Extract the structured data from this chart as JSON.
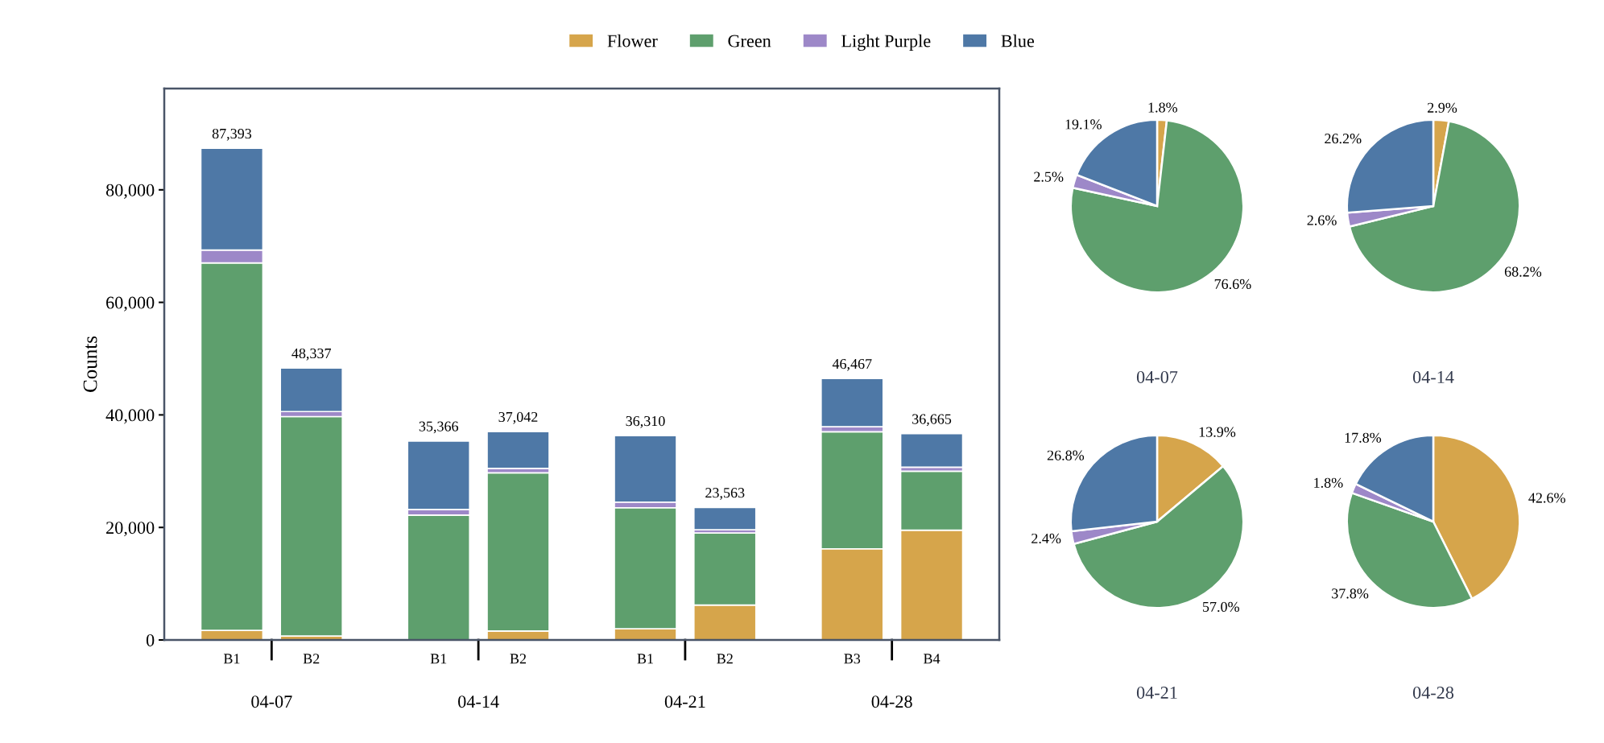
{
  "chart_data": [
    {
      "type": "bar",
      "stacked": true,
      "ylabel": "Counts",
      "categories": [
        "B1",
        "B2",
        "B1",
        "B2",
        "B1",
        "B2",
        "B3",
        "B4"
      ],
      "annotations": [
        "04-07",
        "04-14",
        "04-21",
        "04-28"
      ],
      "series": [
        {
          "name": "Flower",
          "color": "#d6a54b",
          "values": [
            1700,
            700,
            null,
            1600,
            2000,
            6200,
            16200,
            19500
          ]
        },
        {
          "name": "Green",
          "color": "#5e9f6d",
          "values": [
            65300,
            39000,
            22200,
            28100,
            21500,
            12800,
            20800,
            10500
          ]
        },
        {
          "name": "Light Purple",
          "color": "#9d88c8",
          "values": [
            2300,
            900,
            1000,
            800,
            1000,
            600,
            900,
            700
          ]
        },
        {
          "name": "Blue",
          "color": "#4e78a6",
          "values": [
            18093,
            7737,
            12166,
            6542,
            11810,
            3963,
            8567,
            5965
          ]
        }
      ],
      "totals": [
        "87,393",
        "48,337",
        "35,366",
        "37,042",
        "36,310",
        "23,563",
        "46,467",
        "36,665"
      ],
      "ylim": [
        0,
        98000
      ],
      "yticks": [
        0,
        {
          "value": 20000,
          "label": "20,000"
        },
        {
          "value": 40000,
          "label": "40,000"
        },
        {
          "value": 60000,
          "label": "60,000"
        },
        {
          "value": 80000,
          "label": "80,000"
        }
      ],
      "grid": false,
      "legend": "top"
    },
    {
      "type": "pie",
      "title": "04-07",
      "categories": [
        null,
        null,
        null,
        null
      ],
      "values": [
        1.8,
        76.6,
        2.5,
        19.1
      ],
      "colors": [
        "#d6a54b",
        "#5e9f6d",
        "#9d88c8",
        "#4e78a6"
      ],
      "value_labels": [
        "1.8%",
        "76.6%",
        "2.5%",
        "19.1%"
      ]
    },
    {
      "type": "pie",
      "title": "04-14",
      "categories": [
        null,
        null,
        null,
        null
      ],
      "values": [
        2.9,
        68.2,
        2.6,
        26.2
      ],
      "colors": [
        "#d6a54b",
        "#5e9f6d",
        "#9d88c8",
        "#4e78a6"
      ],
      "value_labels": [
        "2.9%",
        "68.2%",
        "2.6%",
        "26.2%"
      ]
    },
    {
      "type": "pie",
      "title": "04-21",
      "categories": [
        null,
        null,
        null,
        null
      ],
      "values": [
        13.9,
        57.0,
        2.4,
        26.8
      ],
      "colors": [
        "#d6a54b",
        "#5e9f6d",
        "#9d88c8",
        "#4e78a6"
      ],
      "value_labels": [
        "13.9%",
        "57.0%",
        "2.4%",
        "26.8%"
      ]
    },
    {
      "type": "pie",
      "title": "04-28",
      "categories": [
        null,
        null,
        null,
        null
      ],
      "values": [
        42.6,
        37.8,
        1.8,
        17.8
      ],
      "colors": [
        "#d6a54b",
        "#5e9f6d",
        "#9d88c8",
        "#4e78a6"
      ],
      "value_labels": [
        "42.6%",
        "37.8%",
        "1.8%",
        "17.8%"
      ]
    }
  ]
}
